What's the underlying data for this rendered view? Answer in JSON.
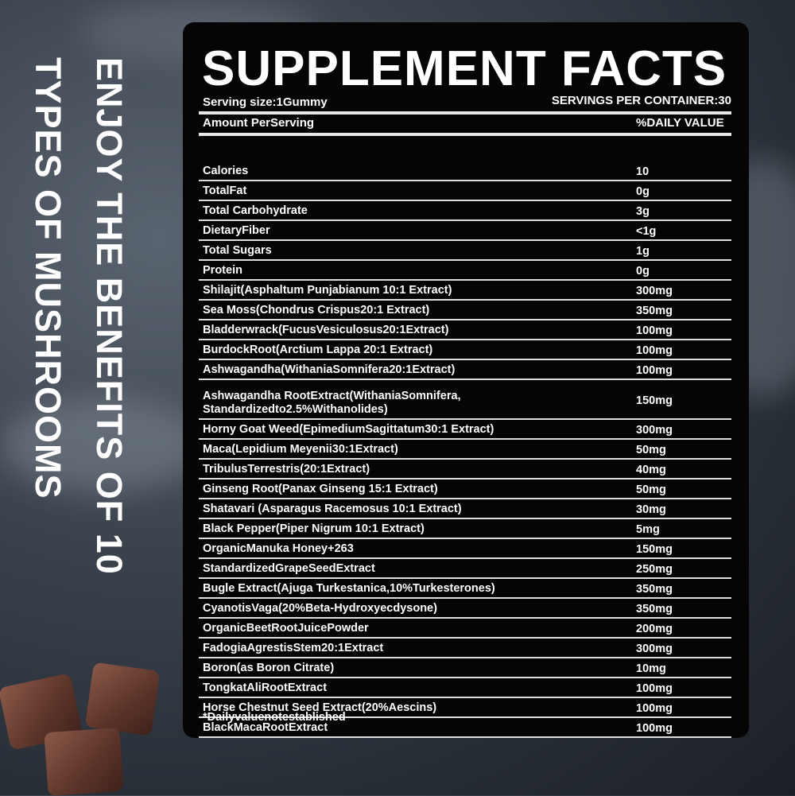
{
  "side_text": {
    "line1": "ENJOY THE BENEFITS OF 10",
    "line2": "TYPES OF MUSHROOMS"
  },
  "panel": {
    "title": "SUPPLEMENT FACTS",
    "serving_size": "Serving size:1Gummy",
    "servings_per_container": "SERVINGS PER CONTAINER:30",
    "amount_header": "Amount PerServing",
    "dv_header": "%DAILY VALUE",
    "rows": [
      {
        "label": "Calories",
        "value": "10"
      },
      {
        "label": "TotalFat",
        "value": "0g"
      },
      {
        "label": "Total Carbohydrate",
        "value": "3g"
      },
      {
        "label": "DietaryFiber",
        "value": "<1g"
      },
      {
        "label": "Total Sugars",
        "value": "1g"
      },
      {
        "label": "Protein",
        "value": "0g"
      },
      {
        "label": "Shilajit(Asphaltum Punjabianum 10:1 Extract)",
        "value": "300mg"
      },
      {
        "label": "Sea Moss(Chondrus Crispus20:1 Extract)",
        "value": "350mg"
      },
      {
        "label": "Bladderwrack(FucusVesiculosus20:1Extract)",
        "value": "100mg"
      },
      {
        "label": "BurdockRoot(Arctium Lappa 20:1 Extract)",
        "value": "100mg"
      },
      {
        "label": "Ashwagandha(WithaniaSomnifera20:1Extract)",
        "value": "100mg"
      },
      {
        "label": "Ashwagandha RootExtract(WithaniaSomnifera,\nStandardizedto2.5%Withanolides)",
        "value": "150mg"
      },
      {
        "label": "Horny Goat Weed(EpimediumSagittatum30:1 Extract)",
        "value": "300mg"
      },
      {
        "label": "Maca(Lepidium Meyenii30:1Extract)",
        "value": "50mg"
      },
      {
        "label": "TribulusTerrestris(20:1Extract)",
        "value": "40mg"
      },
      {
        "label": "Ginseng Root(Panax Ginseng 15:1 Extract)",
        "value": "50mg"
      },
      {
        "label": "Shatavari (Asparagus Racemosus 10:1 Extract)",
        "value": "30mg"
      },
      {
        "label": "Black Pepper(Piper Nigrum 10:1 Extract)",
        "value": "5mg"
      },
      {
        "label": "OrganicManuka Honey+263",
        "value": "150mg"
      },
      {
        "label": "StandardizedGrapeSeedExtract",
        "value": "250mg"
      },
      {
        "label": "Bugle Extract(Ajuga Turkestanica,10%Turkesterones)",
        "value": "350mg"
      },
      {
        "label": "CyanotisVaga(20%Beta-Hydroxyecdysone)",
        "value": "350mg"
      },
      {
        "label": "OrganicBeetRootJuicePowder",
        "value": "200mg"
      },
      {
        "label": "FadogiaAgrestisStem20:1Extract",
        "value": "300mg"
      },
      {
        "label": "Boron(as Boron Citrate)",
        "value": "10mg"
      },
      {
        "label": "TongkatAliRootExtract",
        "value": "100mg"
      },
      {
        "label": "Horse Chestnut Seed Extract(20%Aescins)",
        "value": "100mg"
      },
      {
        "label": "BlackMacaRootExtract",
        "value": "100mg"
      }
    ],
    "footnote": "*Dailyvaluenotestablished"
  }
}
